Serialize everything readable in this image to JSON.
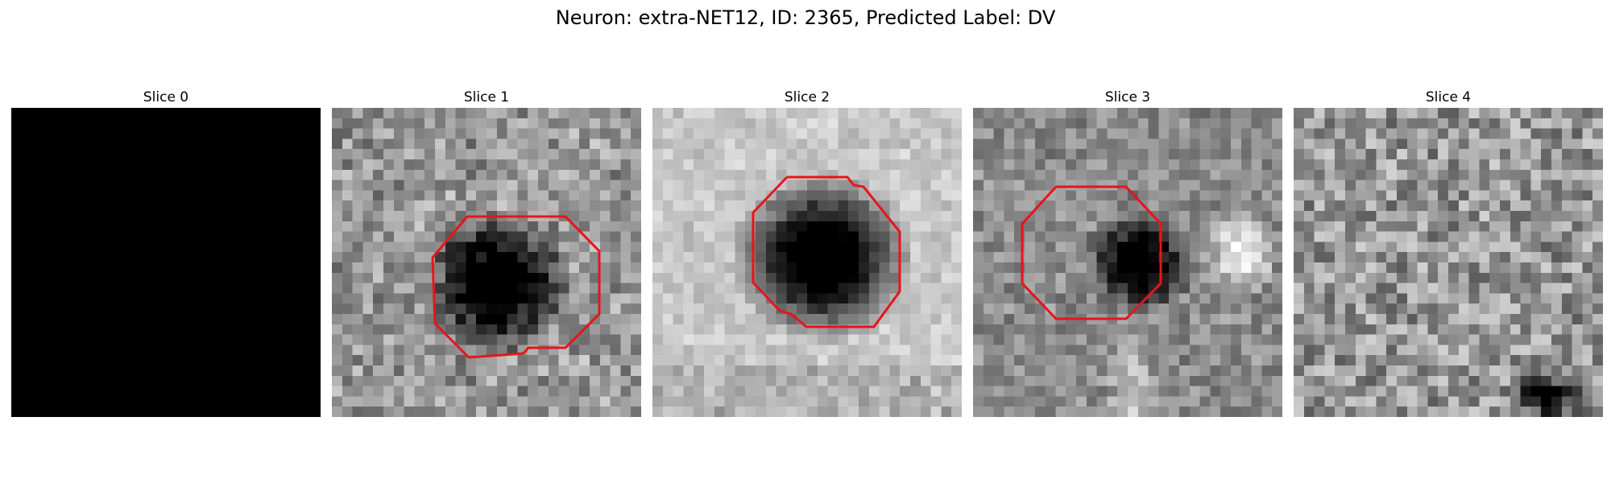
{
  "figure": {
    "title": "Neuron: extra-NET12, ID: 2365, Predicted Label: DV"
  },
  "panels": [
    {
      "title": "Slice 0",
      "style": "blank",
      "outline": false
    },
    {
      "title": "Slice 1",
      "style": "noisy-dark-blob",
      "outline": true
    },
    {
      "title": "Slice 2",
      "style": "smooth-dark-blob",
      "outline": true
    },
    {
      "title": "Slice 3",
      "style": "small-dark-blob",
      "outline": true
    },
    {
      "title": "Slice 4",
      "style": "noise-only",
      "outline": false
    }
  ],
  "outline_color": "#e8141a",
  "colormap": "grayscale"
}
